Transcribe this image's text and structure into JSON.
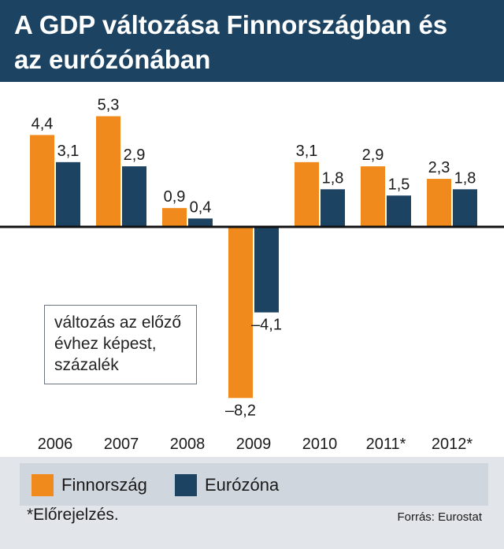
{
  "title": {
    "line1": "A GDP változása Finnországban és",
    "line2": "az eurózónában"
  },
  "chart_data": {
    "type": "bar",
    "categories": [
      "2006",
      "2007",
      "2008",
      "2009",
      "2010",
      "2011*",
      "2012*"
    ],
    "series": [
      {
        "name": "Finnország",
        "color": "#f08a1c",
        "values": [
          4.4,
          5.3,
          0.9,
          -8.2,
          3.1,
          2.9,
          2.3
        ],
        "labels": [
          "4,4",
          "5,3",
          "0,9",
          "–8,2",
          "3,1",
          "2,9",
          "2,3"
        ]
      },
      {
        "name": "Eurózóna",
        "color": "#1d4363",
        "values": [
          3.1,
          2.9,
          0.4,
          -4.1,
          1.8,
          1.5,
          1.8
        ],
        "labels": [
          "3,1",
          "2,9",
          "0,4",
          "–4,1",
          "1,8",
          "1,5",
          "1,8"
        ]
      }
    ],
    "ylim": [
      -8.2,
      5.3
    ],
    "grid": false,
    "legend": "bottom"
  },
  "note": {
    "line1": "változás az előző",
    "line2": "évhez képest,",
    "line3": "százalék"
  },
  "legend": {
    "item1": "Finnország",
    "item2": "Eurózóna"
  },
  "footnote": "*Előrejelzés.",
  "source": "Forrás: Eurostat"
}
